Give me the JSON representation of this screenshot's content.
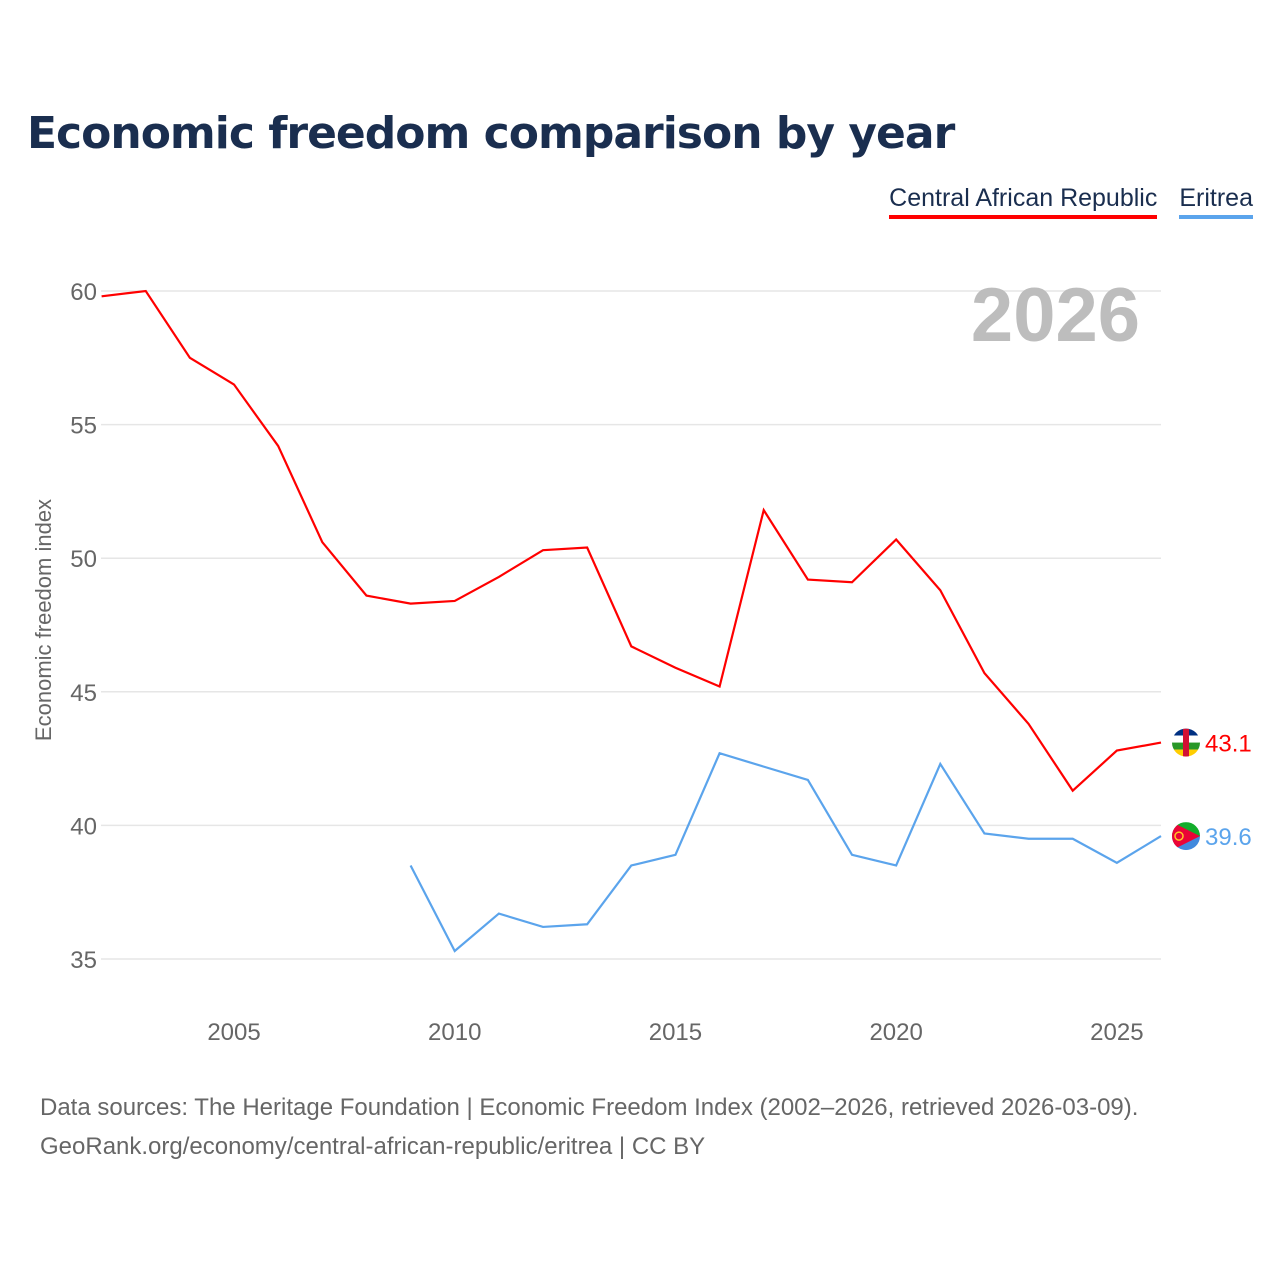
{
  "title": "Economic freedom comparison by year",
  "chart_data": {
    "type": "line",
    "title": "Economic freedom comparison by year",
    "ylabel": "Economic freedom index",
    "xlabel": "",
    "xlim": [
      2002,
      2026
    ],
    "ylim": [
      33.5,
      61
    ],
    "yticks": [
      35,
      40,
      45,
      50,
      55,
      60
    ],
    "xticks": [
      2005,
      2010,
      2015,
      2020,
      2025
    ],
    "grid": "horizontal",
    "legend_position": "top-right",
    "year_watermark": "2026",
    "series": [
      {
        "name": "Central African Republic",
        "color": "#ff0000",
        "end_label": "43.1",
        "x": [
          2002,
          2003,
          2004,
          2005,
          2006,
          2007,
          2008,
          2009,
          2010,
          2011,
          2012,
          2013,
          2014,
          2015,
          2016,
          2017,
          2018,
          2019,
          2020,
          2021,
          2022,
          2023,
          2024,
          2025,
          2026
        ],
        "values": [
          59.8,
          60.0,
          57.5,
          56.5,
          54.2,
          50.6,
          48.6,
          48.3,
          48.4,
          49.3,
          50.3,
          50.4,
          46.7,
          45.9,
          45.2,
          51.8,
          49.2,
          49.1,
          50.7,
          48.8,
          45.7,
          43.8,
          41.3,
          42.8,
          43.1
        ]
      },
      {
        "name": "Eritrea",
        "color": "#5ba4ec",
        "end_label": "39.6",
        "x": [
          2009,
          2010,
          2011,
          2012,
          2013,
          2014,
          2015,
          2016,
          2017,
          2018,
          2019,
          2020,
          2021,
          2022,
          2023,
          2024,
          2025,
          2026
        ],
        "values": [
          38.5,
          35.3,
          36.7,
          36.2,
          36.3,
          38.5,
          38.9,
          42.7,
          42.2,
          41.7,
          38.9,
          38.5,
          42.3,
          39.7,
          39.5,
          39.5,
          38.6,
          39.6
        ]
      }
    ]
  },
  "source_line1": "Data sources: The Heritage Foundation | Economic Freedom Index (2002–2026, retrieved 2026-03-09).",
  "source_line2": "GeoRank.org/economy/central-african-republic/eritrea | CC BY"
}
